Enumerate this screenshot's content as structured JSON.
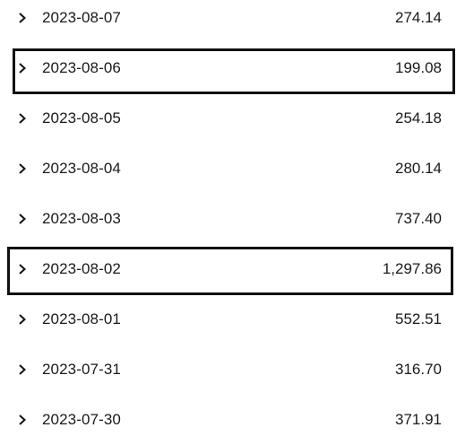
{
  "rows": [
    {
      "date": "2023-08-07",
      "amount": "274.14"
    },
    {
      "date": "2023-08-06",
      "amount": "199.08"
    },
    {
      "date": "2023-08-05",
      "amount": "254.18"
    },
    {
      "date": "2023-08-04",
      "amount": "280.14"
    },
    {
      "date": "2023-08-03",
      "amount": "737.40"
    },
    {
      "date": "2023-08-02",
      "amount": "1,297.86"
    },
    {
      "date": "2023-08-01",
      "amount": "552.51"
    },
    {
      "date": "2023-07-31",
      "amount": "316.70"
    },
    {
      "date": "2023-07-30",
      "amount": "371.91"
    }
  ],
  "icons": {
    "expand": "chevron-right-icon"
  },
  "colors": {
    "text": "#1a1a1a",
    "highlight_border": "#111111",
    "background": "#ffffff"
  }
}
